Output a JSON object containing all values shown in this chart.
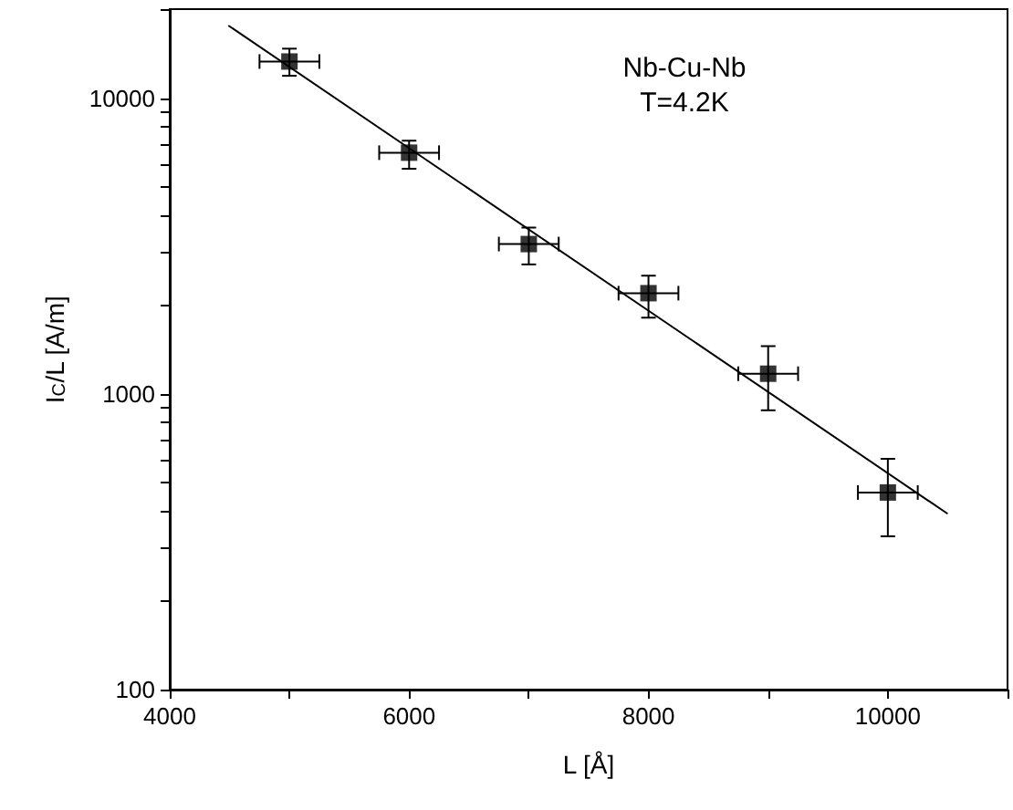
{
  "chart_data": {
    "type": "scatter",
    "xlabel": "L [Å]",
    "ylabel": "I$_{C}$/L [A/m]",
    "annotations": [
      "Nb-Cu-Nb",
      "T=4.2K"
    ],
    "log": "y",
    "grid": false,
    "legend": false,
    "marker": "square",
    "xlim": [
      4000,
      11000
    ],
    "xticks": [
      4000,
      {
        "value": 5000,
        "label": null
      },
      6000,
      {
        "value": 7000,
        "label": null
      },
      8000,
      {
        "value": 9000,
        "label": null
      },
      10000,
      {
        "value": 11000,
        "label": null
      }
    ],
    "ylim": [
      100,
      20000
    ],
    "yticks": [
      100,
      {
        "value": 200,
        "label": null
      },
      {
        "value": 300,
        "label": null
      },
      {
        "value": 400,
        "label": null
      },
      {
        "value": 500,
        "label": null
      },
      {
        "value": 600,
        "label": null
      },
      {
        "value": 700,
        "label": null
      },
      {
        "value": 800,
        "label": null
      },
      {
        "value": 900,
        "label": null
      },
      1000,
      {
        "value": 2000,
        "label": null
      },
      {
        "value": 3000,
        "label": null
      },
      {
        "value": 4000,
        "label": null
      },
      {
        "value": 5000,
        "label": null
      },
      {
        "value": 6000,
        "label": null
      },
      {
        "value": 7000,
        "label": null
      },
      {
        "value": 8000,
        "label": null
      },
      {
        "value": 9000,
        "label": null
      },
      10000,
      {
        "value": 20000,
        "label": null
      }
    ],
    "series": [
      {
        "color": "#000000",
        "x": [
          5000,
          6000,
          7000,
          8000,
          9000,
          10000
        ],
        "values": [
          13300,
          6540,
          3210,
          2190,
          1170,
          464
        ],
        "errors": [
          [
            11900,
            14700
          ],
          [
            5770,
            7180
          ],
          [
            2740,
            3650
          ],
          [
            1810,
            2510
          ],
          [
            880,
            1450
          ],
          [
            330,
            603
          ]
        ],
        "xerrors": [
          250,
          250,
          250,
          250,
          250,
          250
        ]
      },
      {
        "type": "line",
        "color": "#000000",
        "marker": "none",
        "x": [
          4490,
          10500
        ],
        "values": [
          17600,
          393
        ]
      }
    ]
  }
}
